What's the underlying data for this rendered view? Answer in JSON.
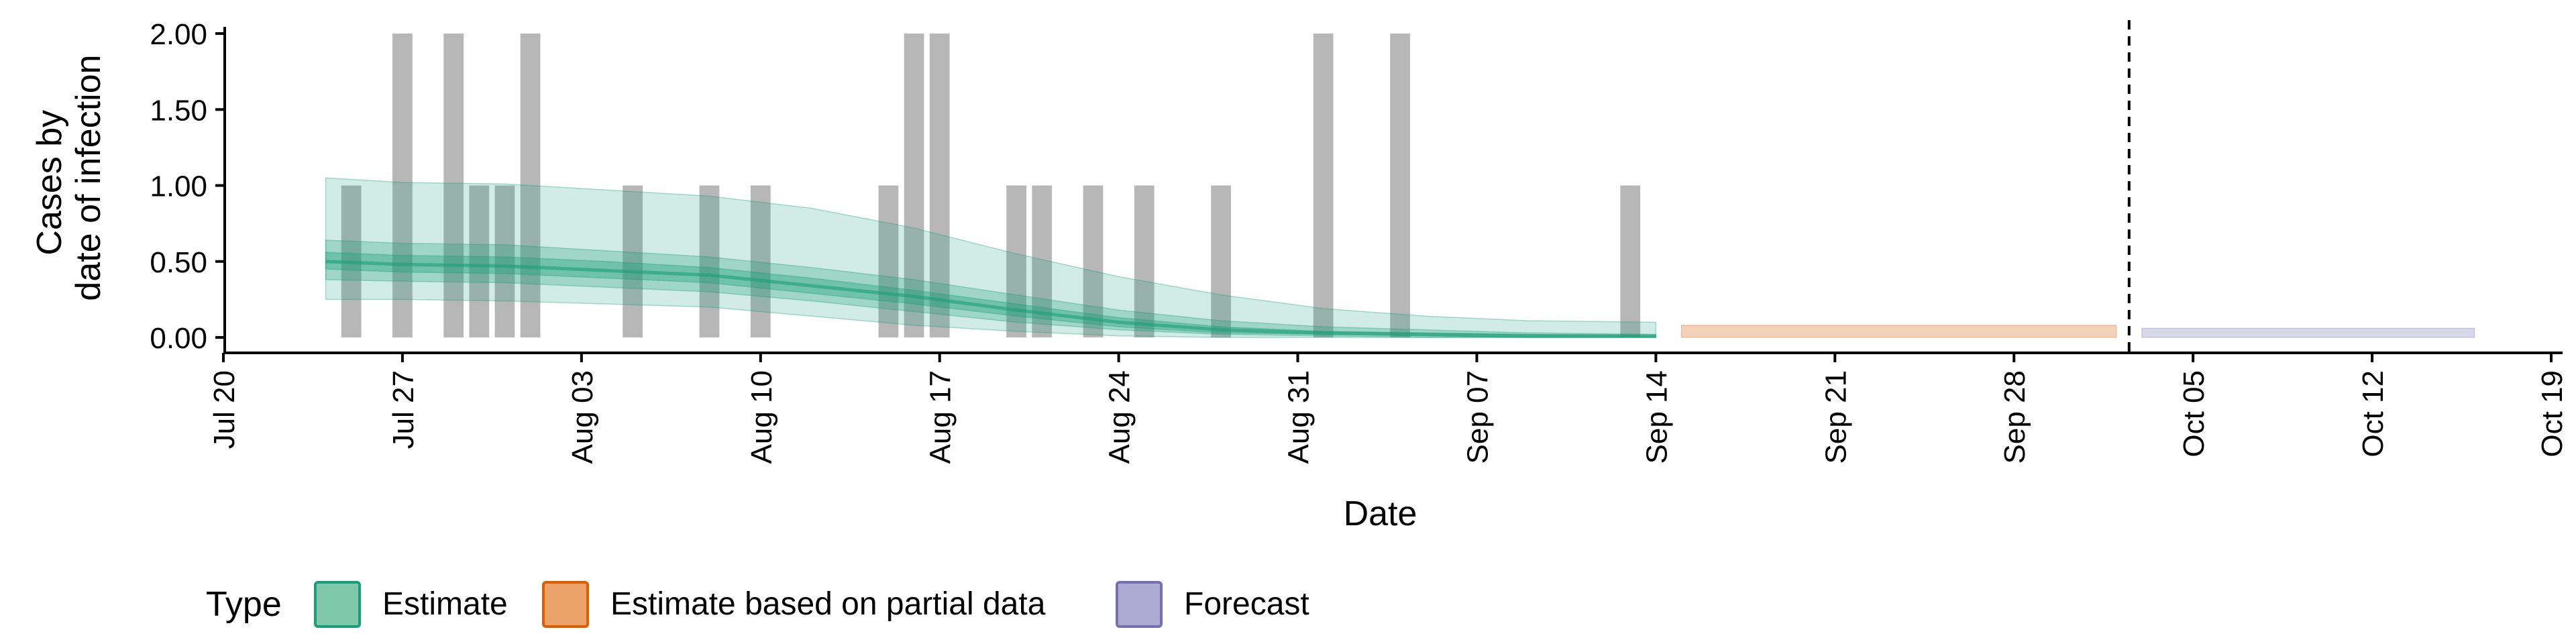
{
  "chart_data": {
    "type": "bar",
    "xlabel": "Date",
    "ylabel_lines": [
      "Cases by",
      "date of infection"
    ],
    "ylim": [
      0,
      2
    ],
    "y_ticks": [
      "0.00",
      "0.50",
      "1.00",
      "1.50",
      "2.00"
    ],
    "x_ticks": [
      {
        "date": "2020-07-20",
        "label": "Jul 20"
      },
      {
        "date": "2020-07-27",
        "label": "Jul 27"
      },
      {
        "date": "2020-08-03",
        "label": "Aug 03"
      },
      {
        "date": "2020-08-10",
        "label": "Aug 10"
      },
      {
        "date": "2020-08-17",
        "label": "Aug 17"
      },
      {
        "date": "2020-08-24",
        "label": "Aug 24"
      },
      {
        "date": "2020-08-31",
        "label": "Aug 31"
      },
      {
        "date": "2020-09-07",
        "label": "Sep 07"
      },
      {
        "date": "2020-09-14",
        "label": "Sep 14"
      },
      {
        "date": "2020-09-21",
        "label": "Sep 21"
      },
      {
        "date": "2020-09-28",
        "label": "Sep 28"
      },
      {
        "date": "2020-10-05",
        "label": "Oct 05"
      },
      {
        "date": "2020-10-12",
        "label": "Oct 12"
      },
      {
        "date": "2020-10-19",
        "label": "Oct 19"
      }
    ],
    "xlim": [
      "2020-07-20",
      "2020-10-19"
    ],
    "reported_cases": [
      {
        "date": "2020-07-25",
        "value": 1
      },
      {
        "date": "2020-07-27",
        "value": 2
      },
      {
        "date": "2020-07-29",
        "value": 2
      },
      {
        "date": "2020-07-30",
        "value": 1
      },
      {
        "date": "2020-07-31",
        "value": 1
      },
      {
        "date": "2020-08-01",
        "value": 2
      },
      {
        "date": "2020-08-05",
        "value": 1
      },
      {
        "date": "2020-08-08",
        "value": 1
      },
      {
        "date": "2020-08-10",
        "value": 1
      },
      {
        "date": "2020-08-15",
        "value": 1
      },
      {
        "date": "2020-08-16",
        "value": 2
      },
      {
        "date": "2020-08-17",
        "value": 2
      },
      {
        "date": "2020-08-20",
        "value": 1
      },
      {
        "date": "2020-08-21",
        "value": 1
      },
      {
        "date": "2020-08-23",
        "value": 1
      },
      {
        "date": "2020-08-25",
        "value": 1
      },
      {
        "date": "2020-08-28",
        "value": 1
      },
      {
        "date": "2020-09-01",
        "value": 2
      },
      {
        "date": "2020-09-04",
        "value": 2
      },
      {
        "date": "2020-09-13",
        "value": 1
      }
    ],
    "estimate": {
      "x": [
        "2020-07-24",
        "2020-07-27",
        "2020-07-31",
        "2020-08-04",
        "2020-08-08",
        "2020-08-12",
        "2020-08-16",
        "2020-08-20",
        "2020-08-24",
        "2020-08-28",
        "2020-09-01",
        "2020-09-05",
        "2020-09-09",
        "2020-09-14"
      ],
      "median": [
        0.5,
        0.48,
        0.47,
        0.44,
        0.41,
        0.34,
        0.27,
        0.18,
        0.1,
        0.05,
        0.03,
        0.02,
        0.01,
        0.01
      ],
      "ci90": [
        [
          0.25,
          1.05
        ],
        [
          0.25,
          1.02
        ],
        [
          0.24,
          1.01
        ],
        [
          0.22,
          0.97
        ],
        [
          0.2,
          0.93
        ],
        [
          0.14,
          0.85
        ],
        [
          0.08,
          0.72
        ],
        [
          0.04,
          0.55
        ],
        [
          0.01,
          0.4
        ],
        [
          0.0,
          0.28
        ],
        [
          0.0,
          0.19
        ],
        [
          0.0,
          0.14
        ],
        [
          0.0,
          0.11
        ],
        [
          0.0,
          0.1
        ]
      ],
      "ci50": [
        [
          0.38,
          0.64
        ],
        [
          0.37,
          0.62
        ],
        [
          0.36,
          0.61
        ],
        [
          0.33,
          0.57
        ],
        [
          0.3,
          0.53
        ],
        [
          0.24,
          0.46
        ],
        [
          0.17,
          0.38
        ],
        [
          0.1,
          0.28
        ],
        [
          0.05,
          0.18
        ],
        [
          0.02,
          0.11
        ],
        [
          0.01,
          0.07
        ],
        [
          0.0,
          0.05
        ],
        [
          0.0,
          0.03
        ],
        [
          0.0,
          0.02
        ]
      ],
      "ci20": [
        [
          0.45,
          0.56
        ],
        [
          0.43,
          0.54
        ],
        [
          0.42,
          0.53
        ],
        [
          0.39,
          0.5
        ],
        [
          0.36,
          0.46
        ],
        [
          0.29,
          0.39
        ],
        [
          0.22,
          0.31
        ],
        [
          0.14,
          0.22
        ],
        [
          0.07,
          0.13
        ],
        [
          0.03,
          0.07
        ],
        [
          0.02,
          0.04
        ],
        [
          0.01,
          0.03
        ],
        [
          0.0,
          0.02
        ],
        [
          0.0,
          0.01
        ]
      ]
    },
    "estimate_partial": {
      "start": "2020-09-15",
      "end": "2020-10-02",
      "ci": [
        0.0,
        0.08
      ]
    },
    "forecast": {
      "start": "2020-10-03",
      "end": "2020-10-16",
      "ci": [
        0.0,
        0.06
      ]
    },
    "forecast_line_date": "2020-10-02",
    "legend": {
      "title": "Type",
      "position": "bottom",
      "items": [
        {
          "label": "Estimate",
          "fill": "#7fc9a8",
          "stroke": "#1b9e77"
        },
        {
          "label": "Estimate based on partial data",
          "fill": "#eba26a",
          "stroke": "#d95f02"
        },
        {
          "label": "Forecast",
          "fill": "#afaad4",
          "stroke": "#7570b3"
        }
      ]
    },
    "colors": {
      "bars": "#b7b7b7",
      "estimate": "#1b9e77",
      "partial": "#d95f02",
      "forecast": "#7570b3"
    }
  }
}
